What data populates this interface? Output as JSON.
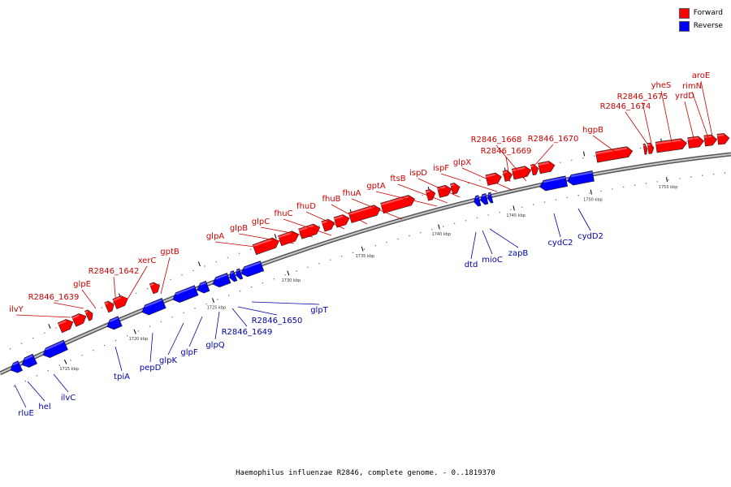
{
  "caption": "Haemophilus influenzae R2846, complete genome. - 0..1819370",
  "legend": [
    {
      "label": "Forward",
      "color": "#ff0000"
    },
    {
      "label": "Reverse",
      "color": "#0000ff"
    }
  ],
  "colors": {
    "forward": "#ff0000",
    "reverse": "#0000ff",
    "forward_label": "#cc0000",
    "reverse_label": "#0000aa",
    "backbone": "#888888"
  },
  "ticks": [
    "1715 kbp",
    "1720 kbp",
    "1725 kbp",
    "1730 kbp",
    "1735 kbp",
    "1740 kbp",
    "1745 kbp",
    "1750 kbp",
    "1755 kbp"
  ],
  "forward_genes": [
    "ilvY",
    "R2846_1639",
    "glpE",
    "R2846_1642",
    "xerC",
    "gptB",
    "glpA",
    "glpB",
    "glpC",
    "fhuC",
    "fhuD",
    "fhuB",
    "fhuA",
    "gptA",
    "ftsB",
    "ispD",
    "ispF",
    "glpX",
    "R2846_1668",
    "R2846_1669",
    "R2846_1670",
    "hgpB",
    "R2846_1674",
    "R2846_1675",
    "yheS",
    "yrdD",
    "rimN",
    "aroE"
  ],
  "reverse_genes": [
    "rluE",
    "hel",
    "ilvC",
    "tpiA",
    "pepD",
    "glpK",
    "glpF",
    "glpQ",
    "R2846_1649",
    "R2846_1650",
    "glpT",
    "dtd",
    "mioC",
    "zapB",
    "cydC2",
    "cydD2"
  ]
}
